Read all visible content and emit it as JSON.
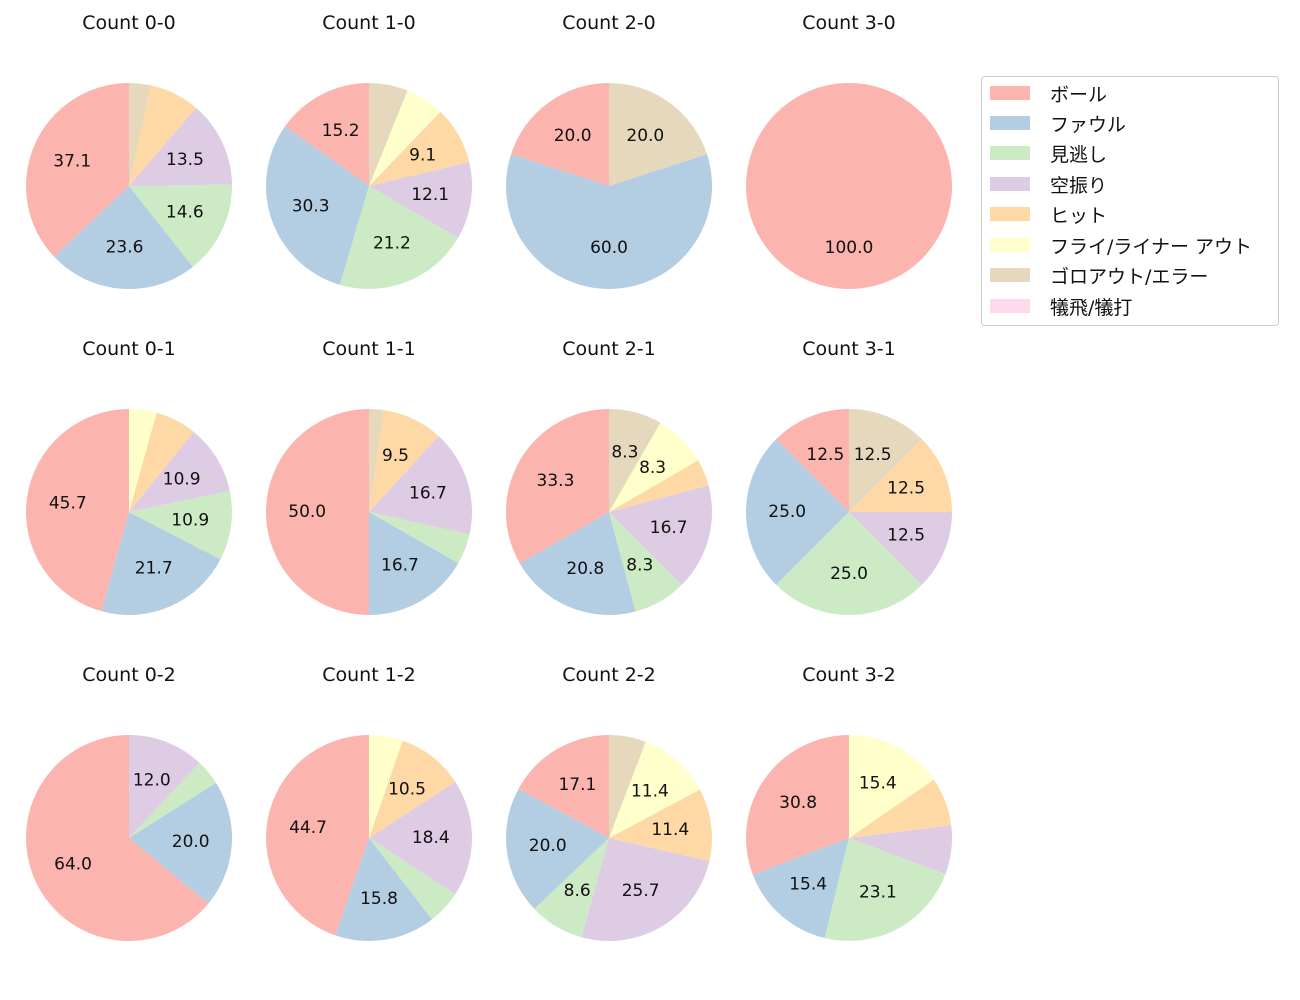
{
  "legend": {
    "items": [
      {
        "label": "ボール",
        "color": "#fbb4ae"
      },
      {
        "label": "ファウル",
        "color": "#b3cde3"
      },
      {
        "label": "見逃し",
        "color": "#ccebc5"
      },
      {
        "label": "空振り",
        "color": "#decbe4"
      },
      {
        "label": "ヒット",
        "color": "#fed9a6"
      },
      {
        "label": "フライ/ライナー アウト",
        "color": "#ffffcc"
      },
      {
        "label": "ゴロアウト/エラー",
        "color": "#e5d8bd"
      },
      {
        "label": "犠飛/犠打",
        "color": "#fddaec"
      }
    ]
  },
  "chart_data": [
    {
      "type": "pie",
      "title": "Count 0-0",
      "values": [
        37.1,
        23.6,
        14.6,
        13.5,
        7.9,
        0,
        3.4,
        0
      ],
      "labels": [
        "37.1",
        "23.6",
        "14.6",
        "13.5",
        "",
        "",
        "",
        ""
      ]
    },
    {
      "type": "pie",
      "title": "Count 1-0",
      "values": [
        15.2,
        30.3,
        21.2,
        12.1,
        9.1,
        6.1,
        6.1,
        0
      ],
      "labels": [
        "15.2",
        "30.3",
        "21.2",
        "12.1",
        "9.1",
        "",
        "",
        ""
      ]
    },
    {
      "type": "pie",
      "title": "Count 2-0",
      "values": [
        20.0,
        60.0,
        0,
        0,
        0,
        0,
        20.0,
        0
      ],
      "labels": [
        "20.0",
        "60.0",
        "",
        "",
        "",
        "",
        "20.0",
        ""
      ]
    },
    {
      "type": "pie",
      "title": "Count 3-0",
      "values": [
        100.0,
        0,
        0,
        0,
        0,
        0,
        0,
        0
      ],
      "labels": [
        "100.0",
        "",
        "",
        "",
        "",
        "",
        "",
        ""
      ]
    },
    {
      "type": "pie",
      "title": "Count 0-1",
      "values": [
        45.7,
        21.7,
        10.9,
        10.9,
        6.5,
        4.3,
        0,
        0
      ],
      "labels": [
        "45.7",
        "21.7",
        "10.9",
        "10.9",
        "",
        "",
        "",
        ""
      ]
    },
    {
      "type": "pie",
      "title": "Count 1-1",
      "values": [
        50.0,
        16.7,
        4.8,
        16.7,
        9.5,
        0,
        2.3,
        0
      ],
      "labels": [
        "50.0",
        "16.7",
        "",
        "16.7",
        "9.5",
        "",
        "",
        ""
      ]
    },
    {
      "type": "pie",
      "title": "Count 2-1",
      "values": [
        33.3,
        20.8,
        8.3,
        16.7,
        4.2,
        8.3,
        8.3,
        0
      ],
      "labels": [
        "33.3",
        "20.8",
        "8.3",
        "16.7",
        "",
        "8.3",
        "8.3",
        ""
      ]
    },
    {
      "type": "pie",
      "title": "Count 3-1",
      "values": [
        12.5,
        25.0,
        25.0,
        12.5,
        12.5,
        0,
        12.5,
        0
      ],
      "labels": [
        "12.5",
        "25.0",
        "25.0",
        "12.5",
        "12.5",
        "",
        "12.5",
        ""
      ]
    },
    {
      "type": "pie",
      "title": "Count 0-2",
      "values": [
        64.0,
        20.0,
        4.0,
        12.0,
        0,
        0,
        0,
        0
      ],
      "labels": [
        "64.0",
        "20.0",
        "",
        "12.0",
        "",
        "",
        "",
        ""
      ]
    },
    {
      "type": "pie",
      "title": "Count 1-2",
      "values": [
        44.7,
        15.8,
        5.3,
        18.4,
        10.5,
        5.3,
        0,
        0
      ],
      "labels": [
        "44.7",
        "15.8",
        "",
        "18.4",
        "10.5",
        "",
        "",
        ""
      ]
    },
    {
      "type": "pie",
      "title": "Count 2-2",
      "values": [
        17.1,
        20.0,
        8.6,
        25.7,
        11.4,
        11.4,
        5.8,
        0
      ],
      "labels": [
        "17.1",
        "20.0",
        "8.6",
        "25.7",
        "11.4",
        "11.4",
        "",
        ""
      ]
    },
    {
      "type": "pie",
      "title": "Count 3-2",
      "values": [
        30.8,
        15.4,
        23.1,
        7.7,
        7.6,
        15.4,
        0,
        0
      ],
      "labels": [
        "30.8",
        "15.4",
        "23.1",
        "",
        "",
        "15.4",
        "",
        ""
      ]
    }
  ]
}
